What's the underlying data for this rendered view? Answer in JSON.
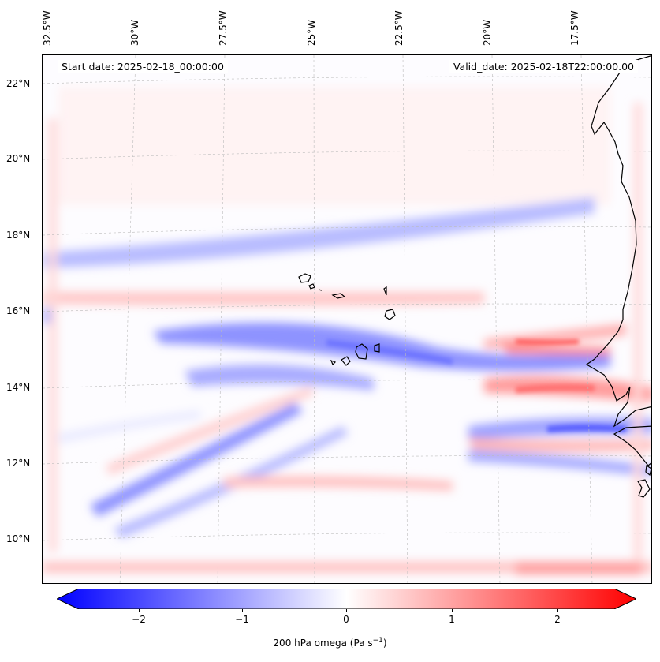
{
  "map": {
    "start_date": "Start date: 2025-02-18_00:00:00",
    "valid_date": "Valid_date: 2025-02-18T22:00:00.00",
    "lon_labels": [
      "32.5°W",
      "30°W",
      "27.5°W",
      "25°W",
      "22.5°W",
      "20°W",
      "17.5°W"
    ],
    "lat_labels": [
      "22°N",
      "20°N",
      "18°N",
      "16°N",
      "14°N",
      "12°N",
      "10°N"
    ]
  },
  "colorbar": {
    "ticks": [
      "−2",
      "−1",
      "0",
      "1",
      "2"
    ],
    "label_prefix": "200 hPa omega (Pa s",
    "label_sup": "−1",
    "label_suffix": ")",
    "low_color": "#0000ff",
    "mid_color": "#ffffff",
    "high_color": "#ff0000"
  }
}
